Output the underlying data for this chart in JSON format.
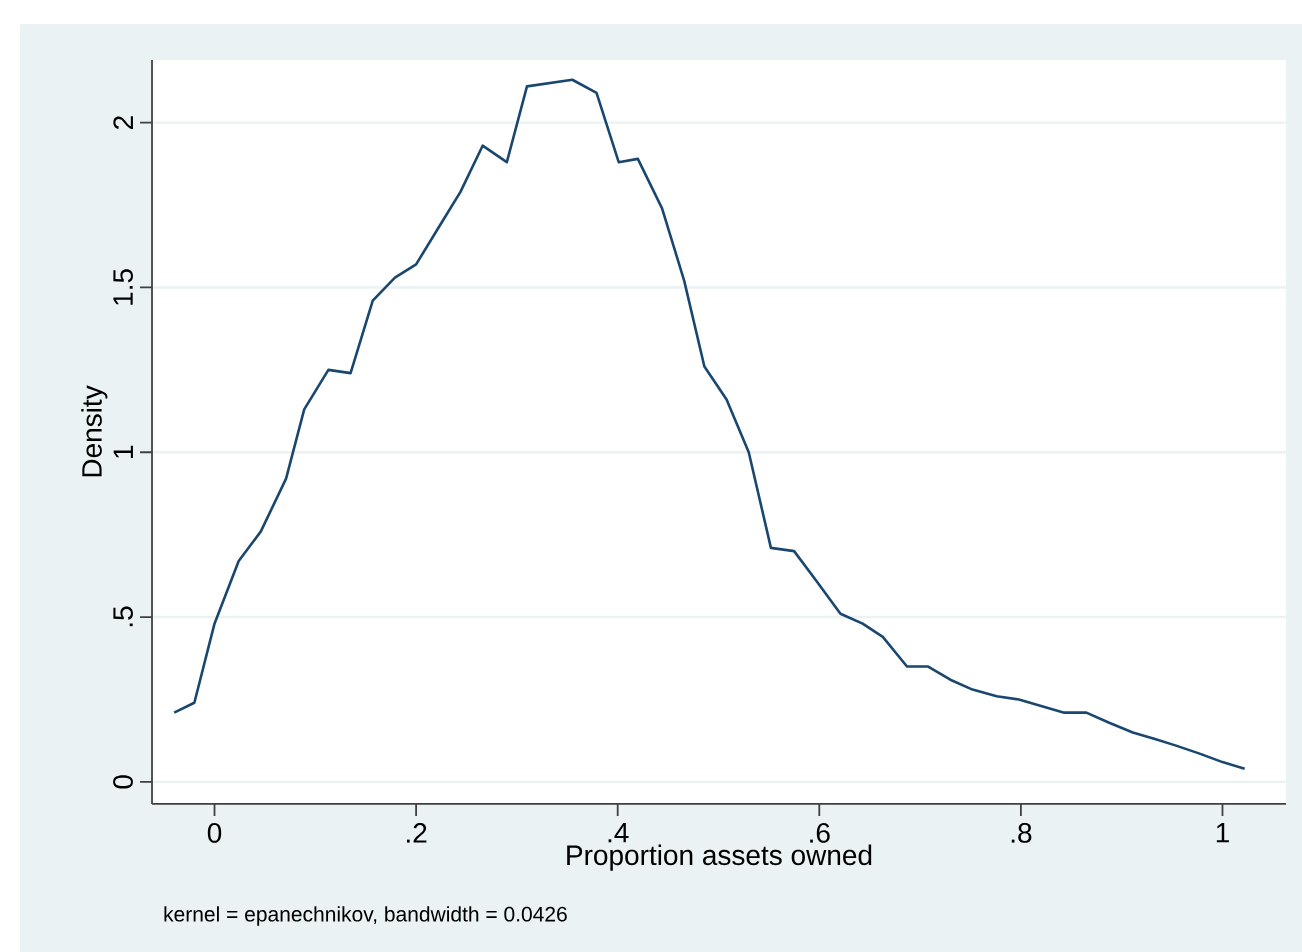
{
  "chart_data": {
    "type": "line",
    "xlabel": "Proportion assets owned",
    "ylabel": "Density",
    "annotations": [
      "kernel = epanechnikov, bandwidth = 0.0426"
    ],
    "x": [
      -0.04,
      -0.02,
      0,
      0.024,
      0.046,
      0.071,
      0.089,
      0.113,
      0.135,
      0.157,
      0.179,
      0.2,
      0.224,
      0.244,
      0.266,
      0.29,
      0.31,
      0.355,
      0.379,
      0.401,
      0.42,
      0.444,
      0.466,
      0.486,
      0.508,
      0.53,
      0.552,
      0.575,
      0.597,
      0.621,
      0.643,
      0.663,
      0.687,
      0.708,
      0.73,
      0.752,
      0.776,
      0.798,
      0.843,
      0.865,
      0.887,
      0.911,
      0.933,
      0.954,
      0.978,
      1.0,
      1.022
    ],
    "series": [
      {
        "color": "#1a476f",
        "values": [
          0.21,
          0.24,
          0.48,
          0.67,
          0.76,
          0.92,
          1.13,
          1.25,
          1.24,
          1.46,
          1.53,
          1.57,
          1.69,
          1.79,
          1.93,
          1.88,
          2.11,
          2.13,
          2.09,
          1.88,
          1.89,
          1.74,
          1.52,
          1.26,
          1.16,
          1.0,
          0.71,
          0.7,
          0.61,
          0.51,
          0.48,
          0.44,
          0.35,
          0.35,
          0.31,
          0.28,
          0.26,
          0.25,
          0.21,
          0.21,
          0.18,
          0.15,
          0.13,
          0.11,
          0.085,
          0.06,
          0.04
        ]
      }
    ],
    "xlim": [
      -0.062,
      1.063
    ],
    "ylim": [
      -0.067,
      2.19
    ],
    "xticks": [
      0,
      {
        "value": 0.2,
        "label": ".2"
      },
      {
        "value": 0.4,
        "label": ".4"
      },
      {
        "value": 0.6,
        "label": ".6"
      },
      {
        "value": 0.8,
        "label": ".8"
      },
      1
    ],
    "yticks": [
      0,
      {
        "value": 0.5,
        "label": ".5"
      },
      1,
      {
        "value": 1.5,
        "label": "1.5"
      },
      2
    ],
    "grid": "y"
  }
}
